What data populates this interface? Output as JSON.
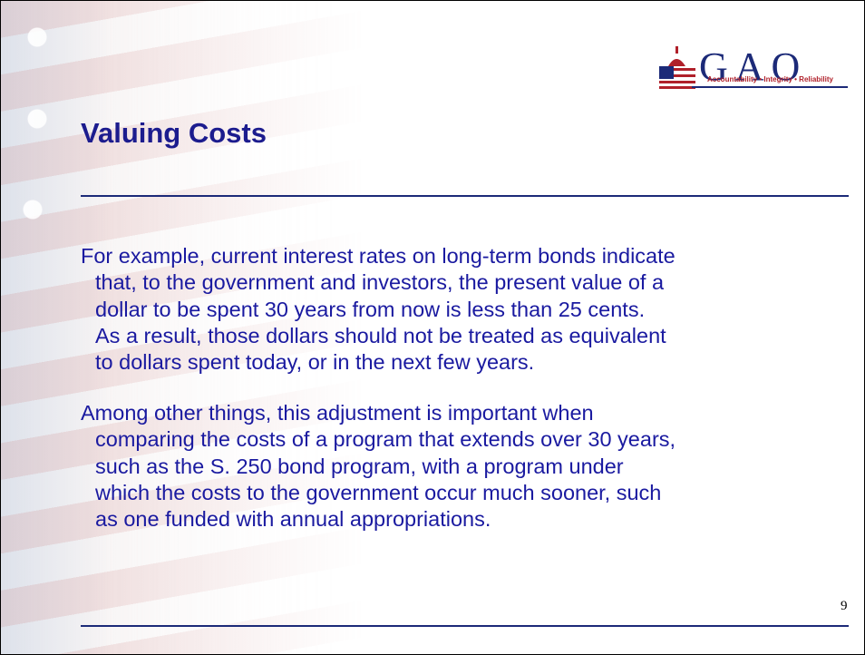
{
  "logo": {
    "name": "GAO",
    "tagline": "Accountability • Integrity • Reliability"
  },
  "title": "Valuing Costs",
  "paragraphs": [
    [
      "For example, current interest rates on long-term bonds indicate",
      "that, to the government and investors, the present value of a",
      "dollar to be spent 30 years from now is less than 25 cents.",
      "As a result, those dollars should not be treated as equivalent",
      "to dollars spent today, or in the next few years."
    ],
    [
      "Among other things, this adjustment is important when",
      "comparing the costs of a program that extends over 30 years,",
      "such as the S. 250 bond program, with a program under",
      "which the costs to the government occur much sooner, such",
      "as one funded with annual appropriations."
    ]
  ],
  "page_number": "9"
}
